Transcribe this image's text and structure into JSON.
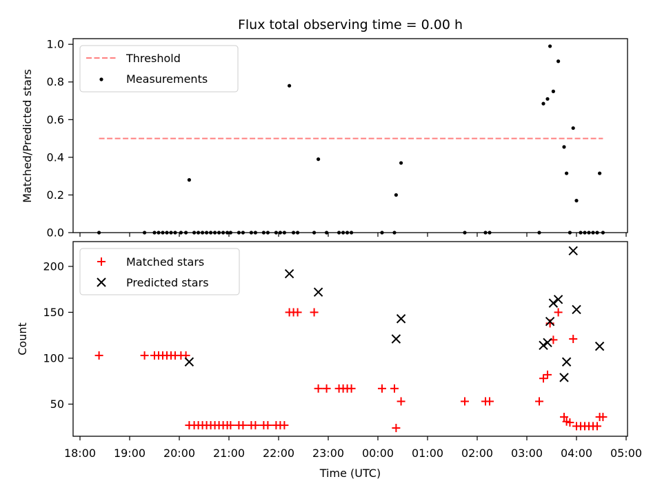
{
  "chart_data": [
    {
      "type": "scatter",
      "title": "Flux total observing time = 0.00 h",
      "ylabel": "Matched/Predicted stars",
      "ylim": [
        0,
        1.03
      ],
      "yticks": [
        "0.0",
        "0.2",
        "0.4",
        "0.6",
        "0.8",
        "1.0"
      ],
      "threshold": {
        "name": "Threshold",
        "value": 0.5,
        "x_start": "18:23",
        "x_end": "04:32",
        "color": "#ff7f7f"
      },
      "series": [
        {
          "name": "Measurements",
          "color": "#000000",
          "points": [
            [
              "18:23",
              0.0
            ],
            [
              "19:18",
              0.0
            ],
            [
              "19:30",
              0.0
            ],
            [
              "19:35",
              0.0
            ],
            [
              "19:40",
              0.0
            ],
            [
              "19:45",
              0.0
            ],
            [
              "19:50",
              0.0
            ],
            [
              "19:55",
              0.0
            ],
            [
              "20:02",
              0.0
            ],
            [
              "20:08",
              0.0
            ],
            [
              "20:12",
              0.28
            ],
            [
              "20:18",
              0.0
            ],
            [
              "20:23",
              0.0
            ],
            [
              "20:28",
              0.0
            ],
            [
              "20:33",
              0.0
            ],
            [
              "20:38",
              0.0
            ],
            [
              "20:43",
              0.0
            ],
            [
              "20:48",
              0.0
            ],
            [
              "20:53",
              0.0
            ],
            [
              "20:58",
              0.0
            ],
            [
              "21:02",
              0.0
            ],
            [
              "21:12",
              0.0
            ],
            [
              "21:17",
              0.0
            ],
            [
              "21:27",
              0.0
            ],
            [
              "21:32",
              0.0
            ],
            [
              "21:42",
              0.0
            ],
            [
              "21:47",
              0.0
            ],
            [
              "21:57",
              0.0
            ],
            [
              "22:02",
              0.0
            ],
            [
              "22:07",
              0.0
            ],
            [
              "22:13",
              0.78
            ],
            [
              "22:18",
              0.0
            ],
            [
              "22:23",
              0.0
            ],
            [
              "22:43",
              0.0
            ],
            [
              "22:48",
              0.39
            ],
            [
              "22:58",
              0.0
            ],
            [
              "23:13",
              0.0
            ],
            [
              "23:18",
              0.0
            ],
            [
              "23:23",
              0.0
            ],
            [
              "23:28",
              0.0
            ],
            [
              "00:05",
              0.0
            ],
            [
              "00:20",
              0.0
            ],
            [
              "00:22",
              0.2
            ],
            [
              "00:28",
              0.37
            ],
            [
              "01:45",
              0.0
            ],
            [
              "02:10",
              0.0
            ],
            [
              "02:15",
              0.0
            ],
            [
              "03:15",
              0.0
            ],
            [
              "03:20",
              0.685
            ],
            [
              "03:25",
              0.71
            ],
            [
              "03:28",
              0.99
            ],
            [
              "03:32",
              0.75
            ],
            [
              "03:38",
              0.91
            ],
            [
              "03:45",
              0.455
            ],
            [
              "03:48",
              0.315
            ],
            [
              "03:52",
              0.0
            ],
            [
              "03:56",
              0.555
            ],
            [
              "04:00",
              0.17
            ],
            [
              "04:05",
              0.0
            ],
            [
              "04:10",
              0.0
            ],
            [
              "04:15",
              0.0
            ],
            [
              "04:20",
              0.0
            ],
            [
              "04:25",
              0.0
            ],
            [
              "04:28",
              0.315
            ],
            [
              "04:32",
              0.0
            ]
          ]
        }
      ]
    },
    {
      "type": "scatter",
      "xlabel": "Time (UTC)",
      "ylabel": "Count",
      "ylim": [
        15,
        227
      ],
      "yticks": [
        "50",
        "100",
        "150",
        "200"
      ],
      "xticks": [
        "18:00",
        "19:00",
        "20:00",
        "21:00",
        "22:00",
        "23:00",
        "00:00",
        "01:00",
        "02:00",
        "03:00",
        "04:00",
        "05:00"
      ],
      "series": [
        {
          "name": "Matched stars",
          "color": "#ff0000",
          "marker": "plus",
          "points": [
            [
              "18:23",
              103
            ],
            [
              "19:18",
              103
            ],
            [
              "19:30",
              103
            ],
            [
              "19:35",
              103
            ],
            [
              "19:40",
              103
            ],
            [
              "19:45",
              103
            ],
            [
              "19:50",
              103
            ],
            [
              "19:55",
              103
            ],
            [
              "20:02",
              103
            ],
            [
              "20:08",
              103
            ],
            [
              "20:12",
              27
            ],
            [
              "20:18",
              27
            ],
            [
              "20:23",
              27
            ],
            [
              "20:28",
              27
            ],
            [
              "20:33",
              27
            ],
            [
              "20:38",
              27
            ],
            [
              "20:43",
              27
            ],
            [
              "20:48",
              27
            ],
            [
              "20:53",
              27
            ],
            [
              "20:58",
              27
            ],
            [
              "21:02",
              27
            ],
            [
              "21:12",
              27
            ],
            [
              "21:17",
              27
            ],
            [
              "21:27",
              27
            ],
            [
              "21:32",
              27
            ],
            [
              "21:42",
              27
            ],
            [
              "21:47",
              27
            ],
            [
              "21:57",
              27
            ],
            [
              "22:02",
              27
            ],
            [
              "22:07",
              27
            ],
            [
              "22:13",
              150
            ],
            [
              "22:18",
              150
            ],
            [
              "22:23",
              150
            ],
            [
              "22:43",
              150
            ],
            [
              "22:48",
              67
            ],
            [
              "22:58",
              67
            ],
            [
              "23:13",
              67
            ],
            [
              "23:18",
              67
            ],
            [
              "23:23",
              67
            ],
            [
              "23:28",
              67
            ],
            [
              "00:05",
              67
            ],
            [
              "00:20",
              67
            ],
            [
              "00:22",
              24
            ],
            [
              "00:28",
              53
            ],
            [
              "01:45",
              53
            ],
            [
              "02:10",
              53
            ],
            [
              "02:15",
              53
            ],
            [
              "03:15",
              53
            ],
            [
              "03:20",
              78
            ],
            [
              "03:25",
              82
            ],
            [
              "03:28",
              138
            ],
            [
              "03:32",
              120
            ],
            [
              "03:38",
              150
            ],
            [
              "03:45",
              36
            ],
            [
              "03:48",
              31
            ],
            [
              "03:52",
              30
            ],
            [
              "03:56",
              121
            ],
            [
              "04:00",
              26
            ],
            [
              "04:05",
              26
            ],
            [
              "04:10",
              26
            ],
            [
              "04:15",
              26
            ],
            [
              "04:20",
              26
            ],
            [
              "04:25",
              26
            ],
            [
              "04:28",
              36
            ],
            [
              "04:32",
              36
            ]
          ]
        },
        {
          "name": "Predicted stars",
          "color": "#000000",
          "marker": "x",
          "points": [
            [
              "20:12",
              96
            ],
            [
              "22:13",
              192
            ],
            [
              "22:48",
              172
            ],
            [
              "00:22",
              121
            ],
            [
              "00:28",
              143
            ],
            [
              "03:20",
              114
            ],
            [
              "03:25",
              117
            ],
            [
              "03:28",
              140
            ],
            [
              "03:32",
              160
            ],
            [
              "03:38",
              164
            ],
            [
              "03:45",
              79
            ],
            [
              "03:48",
              96
            ],
            [
              "03:56",
              217
            ],
            [
              "04:00",
              153
            ],
            [
              "04:28",
              113
            ]
          ]
        }
      ]
    }
  ]
}
